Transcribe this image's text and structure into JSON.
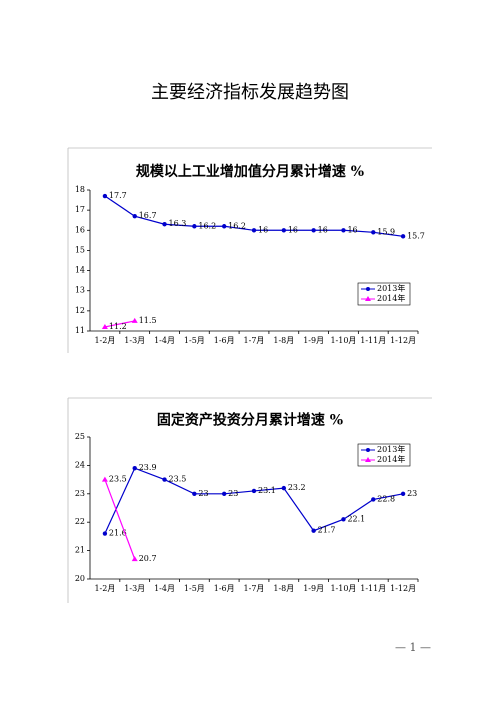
{
  "title": "主要经济指标发展趋势图",
  "chart_data": [
    {
      "type": "line",
      "title": "规模以上工业增加值分月累计增速 %",
      "categories": [
        "1-2月",
        "1-3月",
        "1-4月",
        "1-5月",
        "1-6月",
        "1-7月",
        "1-8月",
        "1-9月",
        "1-10月",
        "1-11月",
        "1-12月"
      ],
      "series": [
        {
          "name": "2013年",
          "color": "#0000cc",
          "marker": "circle",
          "values": [
            17.7,
            16.7,
            16.3,
            16.2,
            16.2,
            16,
            16,
            16,
            16,
            15.9,
            15.7
          ]
        },
        {
          "name": "2014年",
          "color": "#ff00ff",
          "marker": "triangle",
          "values": [
            11.2,
            11.5,
            null,
            null,
            null,
            null,
            null,
            null,
            null,
            null,
            null
          ]
        }
      ],
      "ylim": [
        11,
        18
      ],
      "yticks": [
        11,
        12,
        13,
        14,
        15,
        16,
        17,
        18
      ],
      "legend": "lower-right"
    },
    {
      "type": "line",
      "title": "固定资产投资分月累计增速 %",
      "categories": [
        "1-2月",
        "1-3月",
        "1-4月",
        "1-5月",
        "1-6月",
        "1-7月",
        "1-8月",
        "1-9月",
        "1-10月",
        "1-11月",
        "1-12月"
      ],
      "series": [
        {
          "name": "2013年",
          "color": "#0000cc",
          "marker": "circle",
          "values": [
            21.6,
            23.9,
            23.5,
            23,
            23,
            23.1,
            23.2,
            21.7,
            22.1,
            22.8,
            23
          ]
        },
        {
          "name": "2014年",
          "color": "#ff00ff",
          "marker": "triangle",
          "values": [
            23.5,
            20.7,
            null,
            null,
            null,
            null,
            null,
            null,
            null,
            null,
            null
          ]
        }
      ],
      "ylim": [
        20,
        25
      ],
      "yticks": [
        20,
        21,
        22,
        23,
        24,
        25
      ],
      "legend": "upper-right"
    }
  ],
  "page_number": "— 1 —"
}
